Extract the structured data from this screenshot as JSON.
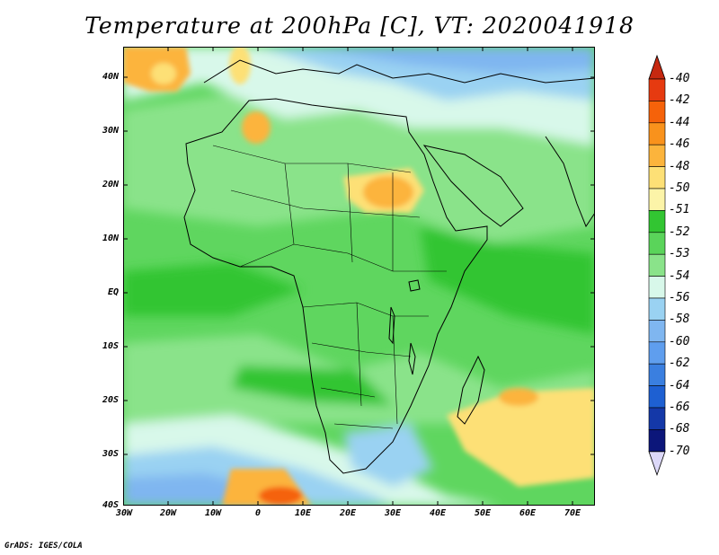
{
  "title": "Temperature at 200hPa [C], VT: 2020041918",
  "footer": "GrADS: IGES/COLA",
  "map": {
    "lon_range": [
      -30,
      75
    ],
    "lat_range": [
      -40,
      45
    ],
    "lat_ticks": [
      "40N",
      "30N",
      "20N",
      "10N",
      "EQ",
      "10S",
      "20S",
      "30S",
      "40S"
    ],
    "lon_ticks": [
      "30W",
      "20W",
      "10W",
      "0",
      "10E",
      "20E",
      "30E",
      "40E",
      "50E",
      "60E",
      "70E"
    ]
  },
  "colorbar": {
    "levels": [
      "-40",
      "-42",
      "-44",
      "-46",
      "-48",
      "-50",
      "-51",
      "-52",
      "-53",
      "-54",
      "-56",
      "-58",
      "-60",
      "-62",
      "-64",
      "-66",
      "-68",
      "-70"
    ],
    "colors": [
      "#c62810",
      "#e63a10",
      "#f5620a",
      "#f9921c",
      "#fcb43c",
      "#fde076",
      "#fcf4a8",
      "#32c532",
      "#5ad45a",
      "#8ae38a",
      "#d8f8ea",
      "#9ad2f2",
      "#7fb6f0",
      "#5f9eee",
      "#3a7fe0",
      "#1e60d2",
      "#1438a8",
      "#0c167a",
      "#dcd8f8"
    ]
  }
}
